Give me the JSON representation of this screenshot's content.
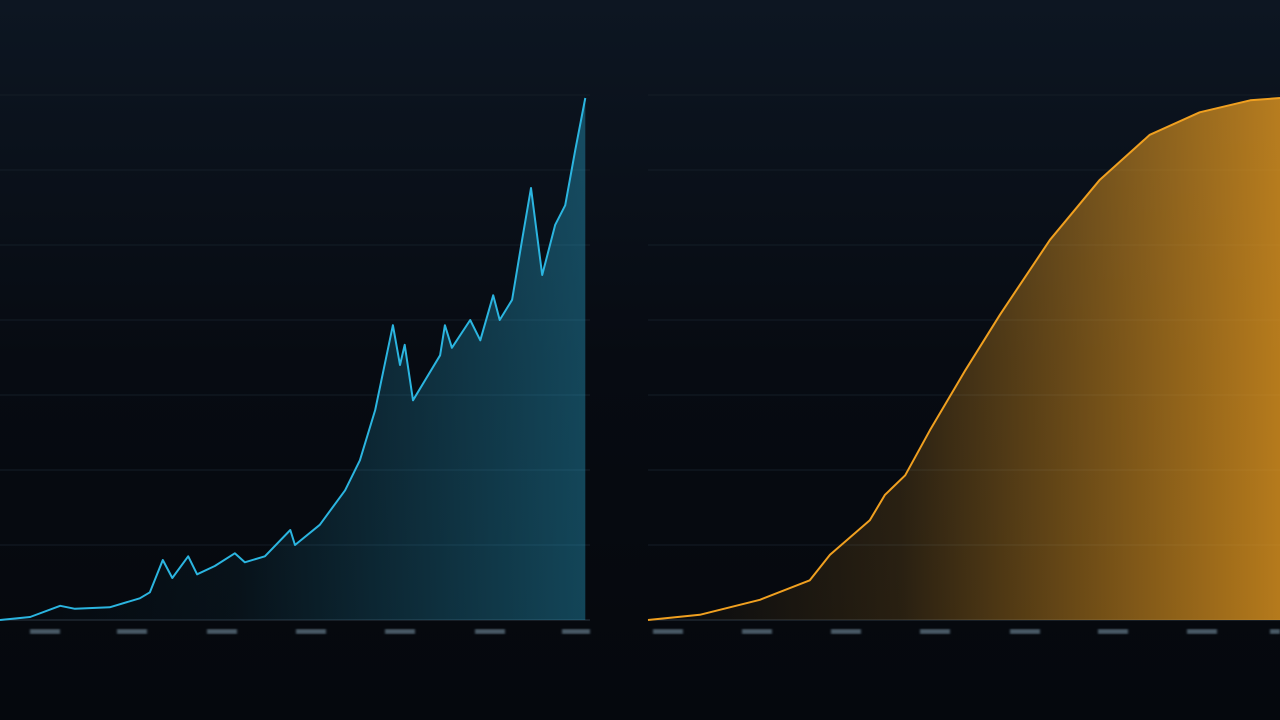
{
  "chart_data": [
    {
      "type": "area",
      "x": [
        0,
        5.1,
        10.2,
        12.7,
        18.6,
        23.7,
        25.4,
        27.6,
        29.2,
        31.9,
        33.4,
        36.4,
        39.8,
        41.5,
        44.9,
        49.2,
        50,
        54.2,
        58.5,
        61,
        63.6,
        66.6,
        67.8,
        68.6,
        70,
        74.6,
        75.4,
        76.6,
        79.7,
        81.4,
        83.6,
        84.7,
        86.8,
        88.5,
        90,
        91.9,
        94.1,
        95.8,
        97.5,
        99.2
      ],
      "series": [
        {
          "color": "#2bb5e0",
          "values": [
            0,
            0.04,
            0.19,
            0.15,
            0.17,
            0.29,
            0.37,
            0.8,
            0.56,
            0.85,
            0.61,
            0.72,
            0.89,
            0.77,
            0.85,
            1.2,
            1.0,
            1.27,
            1.73,
            2.13,
            2.8,
            3.93,
            3.4,
            3.67,
            2.93,
            3.53,
            3.93,
            3.63,
            4.0,
            3.73,
            4.33,
            4.0,
            4.27,
            5.07,
            5.76,
            4.6,
            5.27,
            5.53,
            6.27,
            6.96
          ]
        }
      ],
      "xlim": [
        0,
        100
      ],
      "ylim": [
        0,
        7
      ],
      "yticks": [
        0,
        1,
        2,
        3,
        4,
        5,
        6,
        7
      ],
      "grid": true
    },
    {
      "type": "area",
      "x": [
        0,
        8.2,
        17.7,
        25.6,
        28.8,
        35.1,
        37.5,
        40.7,
        44.6,
        50.2,
        55.7,
        63.6,
        71.5,
        79.4,
        87.3,
        95.3,
        100
      ],
      "series": [
        {
          "color": "#f0a020",
          "values": [
            0,
            0.07,
            0.27,
            0.53,
            0.87,
            1.33,
            1.67,
            1.93,
            2.53,
            3.33,
            4.07,
            5.07,
            5.87,
            6.47,
            6.77,
            6.93,
            6.96
          ]
        }
      ],
      "xlim": [
        0,
        100
      ],
      "ylim": [
        0,
        7
      ],
      "yticks": [
        0,
        1,
        2,
        3,
        4,
        5,
        6,
        7
      ],
      "grid": true
    }
  ]
}
